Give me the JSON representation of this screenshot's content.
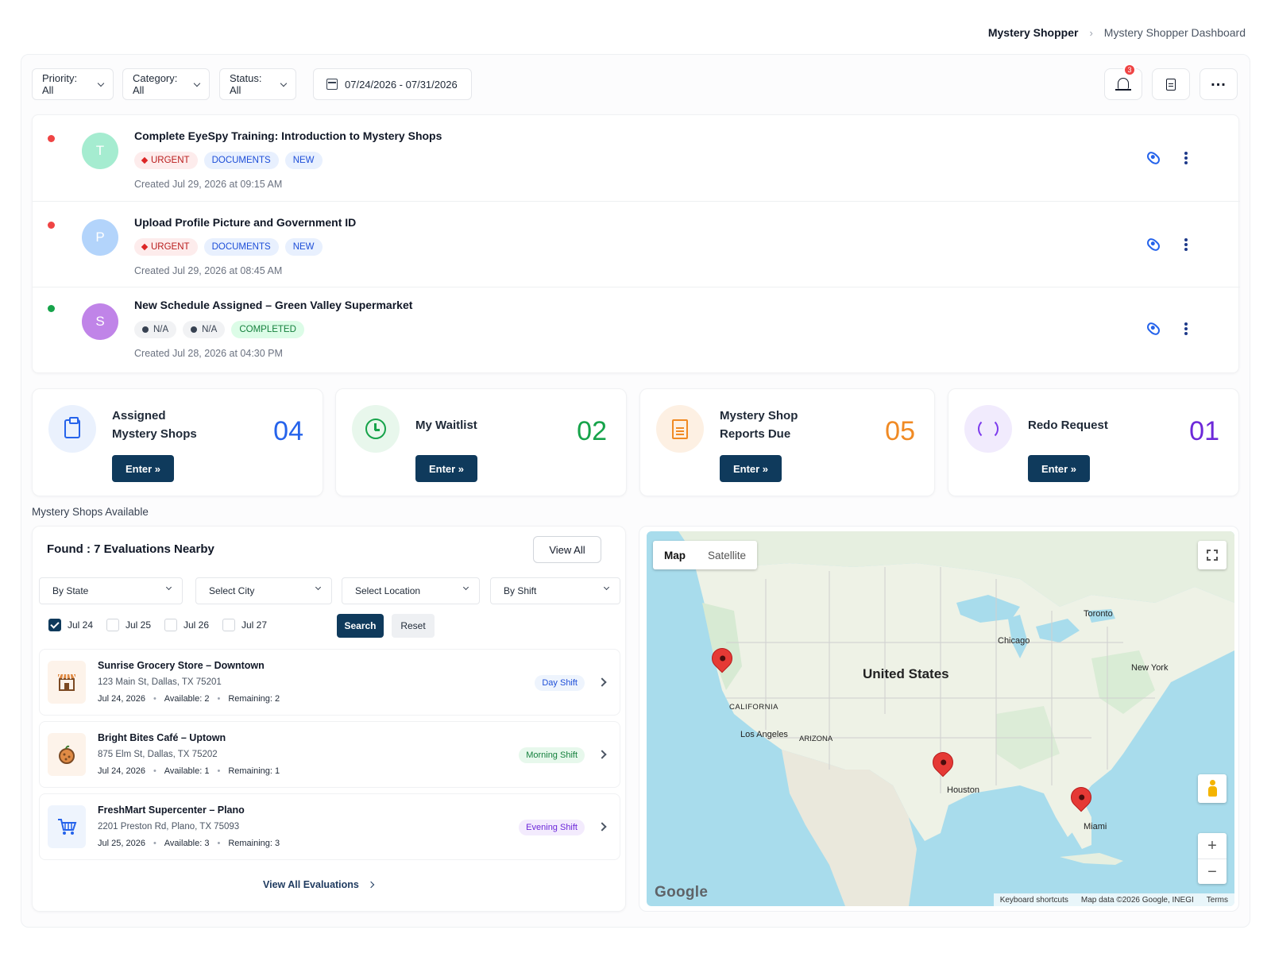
{
  "breadcrumb": {
    "main": "Mystery Shopper",
    "current": "Mystery Shopper Dashboard"
  },
  "toolbar": {
    "priority": "Priority: All",
    "category": "Category: All",
    "status": "Status: All",
    "date_range": "07/24/2026 - 07/31/2026",
    "notification_count": "3"
  },
  "notifications": [
    {
      "title": "Complete EyeSpy Training: Introduction to Mystery Shops",
      "avatar": "T",
      "tags": [
        "URGENT",
        "DOCUMENTS",
        "NEW"
      ],
      "created": "Created Jul 29, 2026 at 09:15 AM"
    },
    {
      "title": "Upload Profile Picture and Government ID",
      "avatar": "P",
      "tags": [
        "URGENT",
        "DOCUMENTS",
        "NEW"
      ],
      "created": "Created Jul 29, 2026 at 08:45 AM"
    },
    {
      "title": "New Schedule Assigned – Green Valley Supermarket",
      "avatar": "S",
      "tags": [
        "N/A",
        "N/A",
        "COMPLETED"
      ],
      "created": "Created Jul 28, 2026 at 04:30 PM"
    }
  ],
  "stats": [
    {
      "label_line1": "Assigned",
      "label_line2": "Mystery Shops",
      "value": "04",
      "button": "Enter »",
      "color": "#2563eb"
    },
    {
      "label_line1": "My Waitlist",
      "label_line2": "",
      "value": "02",
      "button": "Enter »",
      "color": "#16a34a"
    },
    {
      "label_line1": "Mystery Shop",
      "label_line2": "Reports Due",
      "value": "05",
      "button": "Enter »",
      "color": "#f08a24"
    },
    {
      "label_line1": "Redo Request",
      "label_line2": "",
      "value": "01",
      "button": "Enter »",
      "color": "#6d28d9"
    }
  ],
  "available": {
    "section_label": "Mystery Shops Available",
    "found": "Found : 7 Evaluations Nearby",
    "view_all": "View All",
    "filters": {
      "state": "By State",
      "city": "Select City",
      "location": "Select Location",
      "shift": "By Shift"
    },
    "dates": [
      {
        "label": "Jul 24",
        "checked": true
      },
      {
        "label": "Jul 25",
        "checked": false
      },
      {
        "label": "Jul 26",
        "checked": false
      },
      {
        "label": "Jul 27",
        "checked": false
      }
    ],
    "search": "Search",
    "reset": "Reset",
    "stores": [
      {
        "name": "Sunrise Grocery Store – Downtown",
        "address": "123 Main St, Dallas, TX 75201",
        "date": "Jul 24, 2026",
        "available": "Available: 2",
        "remaining": "Remaining: 2",
        "shift": "Day Shift",
        "icon": "store-icon"
      },
      {
        "name": "Bright Bites Café – Uptown",
        "address": "875 Elm St, Dallas, TX 75202",
        "date": "Jul 24, 2026",
        "available": "Available: 1",
        "remaining": "Remaining: 1",
        "shift": "Morning Shift",
        "icon": "food-icon"
      },
      {
        "name": "FreshMart Supercenter – Plano",
        "address": "2201 Preston Rd, Plano, TX 75093",
        "date": "Jul 25, 2026",
        "available": "Available: 3",
        "remaining": "Remaining: 3",
        "shift": "Evening Shift",
        "icon": "cart-icon"
      }
    ],
    "view_all_link": "View All Evaluations"
  },
  "map": {
    "tab_map": "Map",
    "tab_satellite": "Satellite",
    "labels": {
      "country": "United States",
      "toronto": "Toronto",
      "chicago": "Chicago",
      "new_york": "New York",
      "california": "CALIFORNIA",
      "los_angeles": "Los Angeles",
      "arizona": "ARIZONA",
      "houston": "Houston",
      "miami": "Miami"
    },
    "google": "Google",
    "attribution": {
      "shortcuts": "Keyboard shortcuts",
      "data": "Map data ©2026 Google, INEGI",
      "terms": "Terms"
    }
  }
}
